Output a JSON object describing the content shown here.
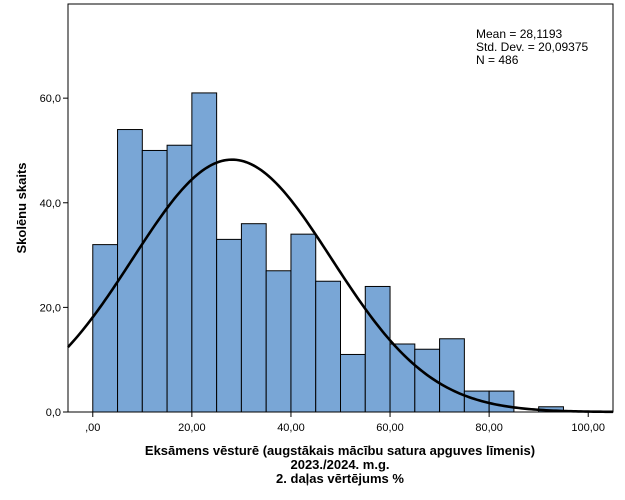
{
  "chart_data": {
    "type": "bar",
    "subtype": "histogram",
    "xlabel_lines": [
      "Eksāmens vēsturē (augstākais mācību satura apguves līmenis)",
      "2023./2024. m.g.",
      "2. daļas vērtējums %"
    ],
    "ylabel": "Skolēnu skaits",
    "stats": [
      "Mean = 28,1193",
      "Std. Dev. = 20,09375",
      "N = 486"
    ],
    "mean": 28.1193,
    "std_dev": 20.09375,
    "n": 486,
    "bin_width": 5,
    "bins": [
      {
        "start": 0,
        "end": 5,
        "count": 32
      },
      {
        "start": 5,
        "end": 10,
        "count": 54
      },
      {
        "start": 10,
        "end": 15,
        "count": 50
      },
      {
        "start": 15,
        "end": 20,
        "count": 51
      },
      {
        "start": 20,
        "end": 25,
        "count": 61
      },
      {
        "start": 25,
        "end": 30,
        "count": 33
      },
      {
        "start": 30,
        "end": 35,
        "count": 36
      },
      {
        "start": 35,
        "end": 40,
        "count": 27
      },
      {
        "start": 40,
        "end": 45,
        "count": 34
      },
      {
        "start": 45,
        "end": 50,
        "count": 25
      },
      {
        "start": 50,
        "end": 55,
        "count": 11
      },
      {
        "start": 55,
        "end": 60,
        "count": 24
      },
      {
        "start": 60,
        "end": 65,
        "count": 13
      },
      {
        "start": 65,
        "end": 70,
        "count": 12
      },
      {
        "start": 70,
        "end": 75,
        "count": 14
      },
      {
        "start": 75,
        "end": 80,
        "count": 4
      },
      {
        "start": 80,
        "end": 85,
        "count": 4
      },
      {
        "start": 85,
        "end": 90,
        "count": 0
      },
      {
        "start": 90,
        "end": 95,
        "count": 1
      }
    ],
    "xlim": [
      -5,
      105
    ],
    "ylim": [
      0,
      78
    ],
    "x_ticks": [
      0,
      20,
      40,
      60,
      80,
      100
    ],
    "x_tick_labels": [
      ",00",
      "20,00",
      "40,00",
      "60,00",
      "80,00",
      "100,00"
    ],
    "y_ticks": [
      0,
      20,
      40,
      60
    ],
    "y_tick_labels": [
      "0,0",
      "20,0",
      "40,0",
      "60,0"
    ],
    "normal_curve": true,
    "grid": false,
    "colors": {
      "bar_fill": "#79a6d6",
      "bar_stroke": "#000000",
      "curve": "#000000",
      "background": "#ffffff"
    }
  }
}
